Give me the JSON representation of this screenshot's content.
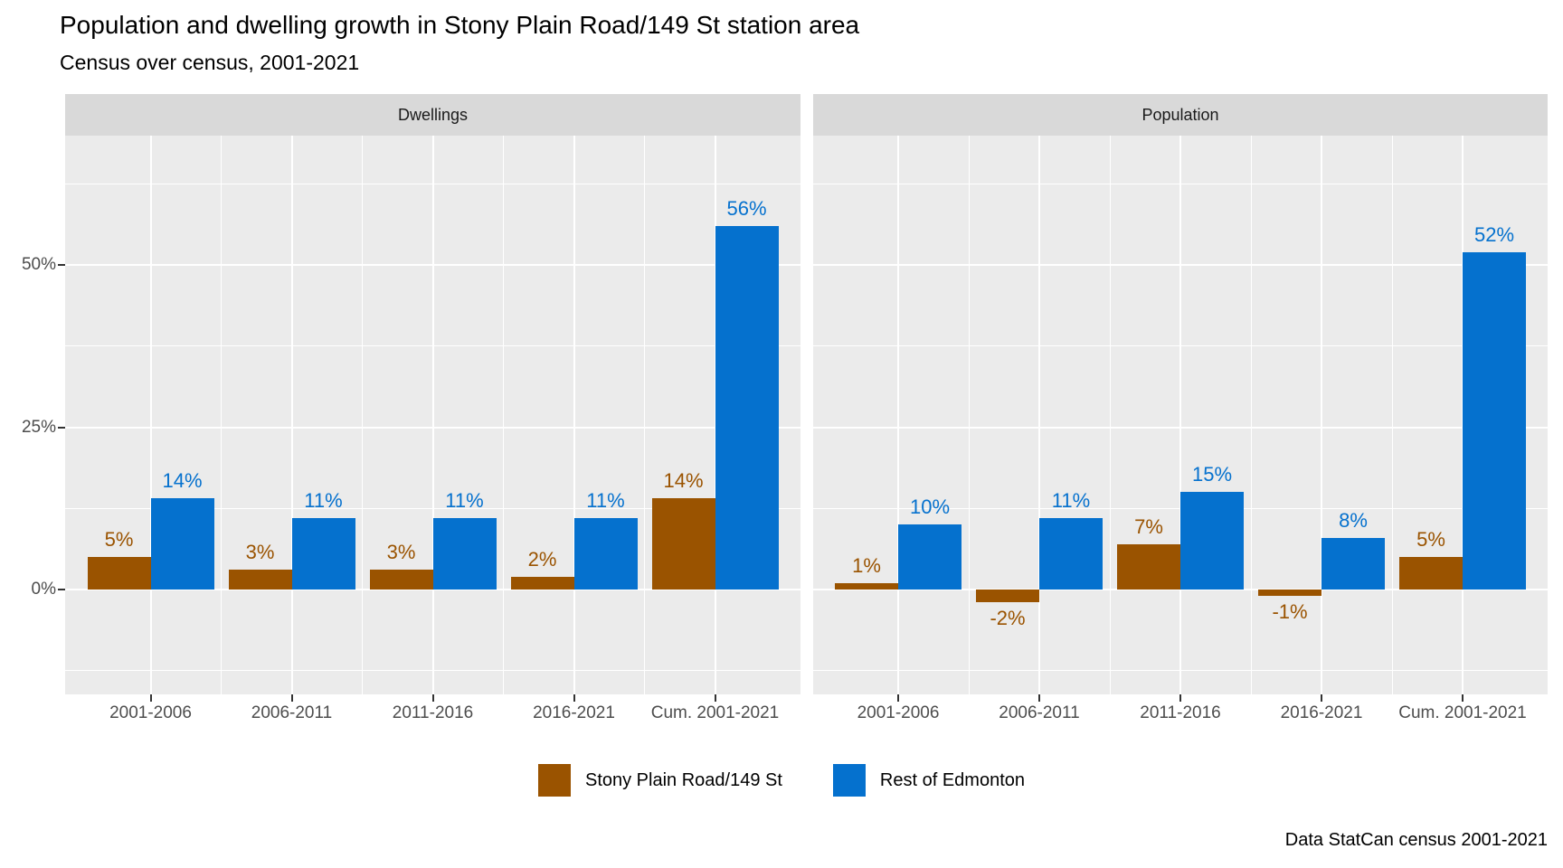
{
  "title": "Population and dwelling growth in Stony Plain Road/149 St station area",
  "subtitle": "Census over census, 2001-2021",
  "caption": "Data StatCan census 2001-2021",
  "colors": {
    "stony_plain": "#9A5300",
    "rest_of_edmonton": "#0571CE",
    "panel_background": "#EBEBEB",
    "strip_background": "#D9D9D9",
    "gridline": "#FFFFFF",
    "axis_text": "#4D4D4D",
    "tick_mark": "#333333"
  },
  "legend": {
    "items": [
      {
        "label": "Stony Plain Road/149 St",
        "color": "#9A5300"
      },
      {
        "label": "Rest of Edmonton",
        "color": "#0571CE"
      }
    ]
  },
  "y_axis": {
    "ticks": [
      {
        "label": "0%",
        "value": 0
      },
      {
        "label": "25%",
        "value": 25
      },
      {
        "label": "50%",
        "value": 50
      }
    ]
  },
  "chart_data": {
    "type": "bar",
    "categories": [
      "2001-2006",
      "2006-2011",
      "2011-2016",
      "2016-2021",
      "Cum. 2001-2021"
    ],
    "facets": [
      {
        "label": "Dwellings",
        "series": [
          {
            "name": "Stony Plain Road/149 St",
            "color": "#9A5300",
            "values": [
              5,
              3,
              3,
              2,
              14
            ]
          },
          {
            "name": "Rest of Edmonton",
            "color": "#0571CE",
            "values": [
              14,
              11,
              11,
              11,
              56
            ]
          }
        ]
      },
      {
        "label": "Population",
        "series": [
          {
            "name": "Stony Plain Road/149 St",
            "color": "#9A5300",
            "values": [
              1,
              -2,
              7,
              -1,
              5
            ]
          },
          {
            "name": "Rest of Edmonton",
            "color": "#0571CE",
            "values": [
              10,
              11,
              15,
              8,
              52
            ]
          }
        ]
      }
    ],
    "value_label_format": "{v}%",
    "ylim": [
      -16,
      70
    ],
    "grid": {
      "major": [
        0,
        25,
        50
      ],
      "minor": [
        -12.5,
        12.5,
        37.5,
        62.5
      ]
    },
    "legend_position": "bottom",
    "title": "Population and dwelling growth in Stony Plain Road/149 St station area",
    "xlabel": "",
    "ylabel": ""
  }
}
